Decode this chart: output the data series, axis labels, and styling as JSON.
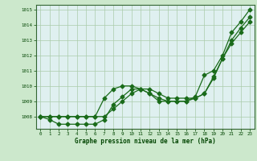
{
  "title": "Graphe pression niveau de la mer (hPa)",
  "background_color": "#cce8cc",
  "plot_background": "#dff0f0",
  "grid_color": "#aaccaa",
  "line_color": "#1a6b1a",
  "xlim": [
    -0.5,
    23.5
  ],
  "ylim": [
    1007.2,
    1015.3
  ],
  "yticks": [
    1008,
    1009,
    1010,
    1011,
    1012,
    1013,
    1014,
    1015
  ],
  "xticks": [
    0,
    1,
    2,
    3,
    4,
    5,
    6,
    7,
    8,
    9,
    10,
    11,
    12,
    13,
    14,
    15,
    16,
    17,
    18,
    19,
    20,
    21,
    22,
    23
  ],
  "series1_x": [
    0,
    1,
    2,
    3,
    4,
    5,
    6,
    7,
    8,
    9,
    10,
    11,
    12,
    13,
    14,
    15,
    16,
    17,
    18,
    19,
    20,
    21,
    22,
    23
  ],
  "series1_y": [
    1008.0,
    1008.0,
    1008.0,
    1008.0,
    1008.0,
    1008.0,
    1008.0,
    1008.0,
    1008.5,
    1009.0,
    1009.5,
    1009.8,
    1009.8,
    1009.5,
    1009.2,
    1009.2,
    1009.2,
    1009.2,
    1009.5,
    1010.5,
    1011.8,
    1013.0,
    1013.8,
    1014.5
  ],
  "series2_x": [
    0,
    1,
    2,
    3,
    4,
    5,
    6,
    7,
    8,
    9,
    10,
    11,
    12,
    13,
    14,
    15,
    16,
    17,
    18,
    19,
    20,
    21,
    22,
    23
  ],
  "series2_y": [
    1008.0,
    1007.8,
    1007.5,
    1007.5,
    1007.5,
    1007.5,
    1007.5,
    1007.8,
    1008.8,
    1009.3,
    1009.8,
    1009.8,
    1009.5,
    1009.2,
    1009.0,
    1009.0,
    1009.0,
    1009.2,
    1009.5,
    1010.6,
    1011.8,
    1012.8,
    1013.5,
    1014.2
  ],
  "series3_x": [
    0,
    1,
    2,
    3,
    4,
    5,
    6,
    7,
    8,
    9,
    10,
    11,
    12,
    13,
    14,
    15,
    16,
    17,
    18,
    19,
    20,
    21,
    22,
    23
  ],
  "series3_y": [
    1008.0,
    1008.0,
    1008.0,
    1008.0,
    1008.0,
    1008.0,
    1008.0,
    1009.2,
    1009.8,
    1010.0,
    1010.0,
    1009.8,
    1009.5,
    1009.0,
    1009.0,
    1009.0,
    1009.0,
    1009.3,
    1010.7,
    1011.0,
    1012.0,
    1013.5,
    1014.2,
    1015.0
  ]
}
